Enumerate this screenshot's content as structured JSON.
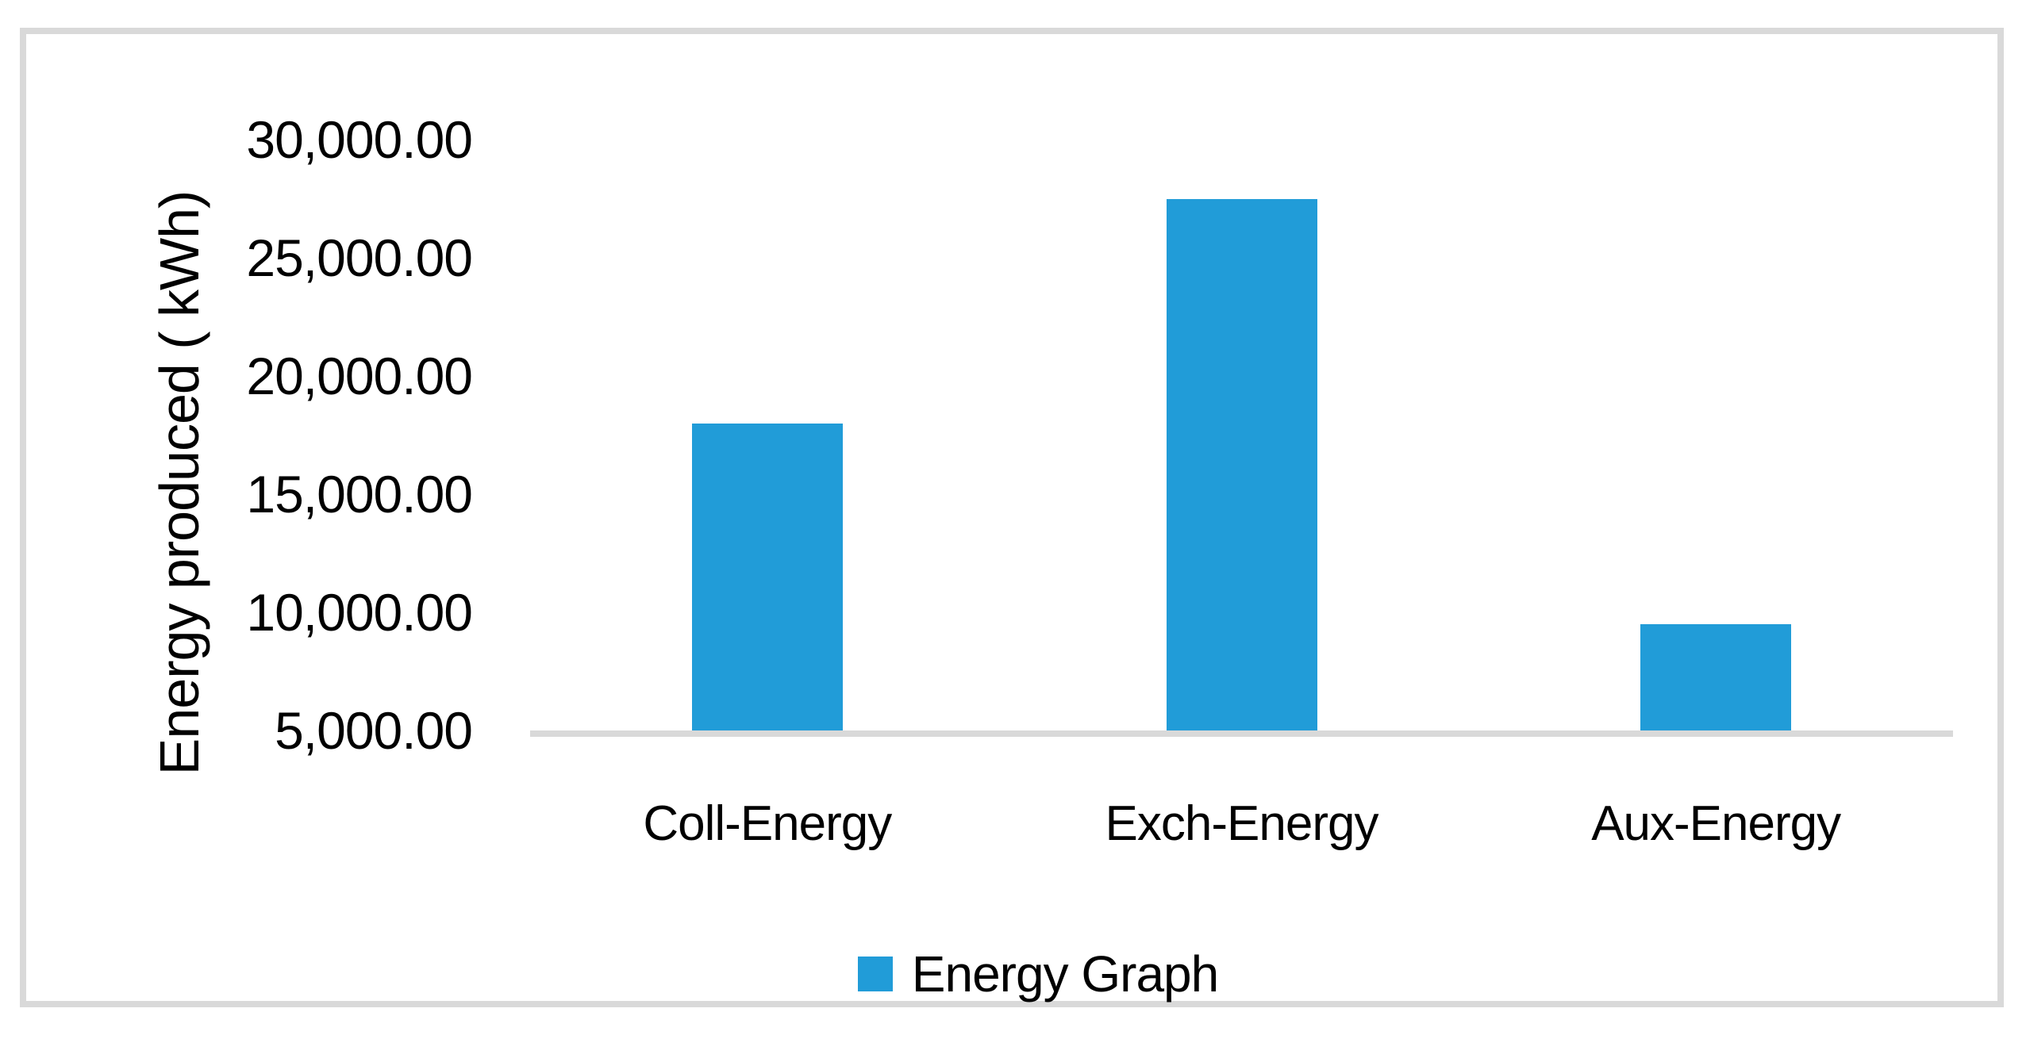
{
  "chart_data": {
    "type": "bar",
    "title": "",
    "categories": [
      "Coll-Energy",
      "Exch-Energy",
      "Aux-Energy"
    ],
    "series": [
      {
        "name": "Energy Graph",
        "values": [
          18000,
          27500,
          9500
        ]
      }
    ],
    "xlabel": "",
    "ylabel": "Energy produced ( kWh)",
    "ylim": [
      5000,
      30000
    ],
    "y_ticks": [
      30000,
      25000,
      20000,
      15000,
      10000,
      5000
    ],
    "y_tick_labels": [
      "30,000.00",
      "25,000.00",
      "20,000.00",
      "15,000.00",
      "10,000.00",
      "5,000.00"
    ],
    "grid": false,
    "legend_position": "bottom",
    "colors": {
      "bar": "#219CD8",
      "axis_line": "#D9D9D9",
      "frame_border": "#D9D9D9",
      "text": "#000000",
      "background": "#FFFFFF"
    }
  }
}
